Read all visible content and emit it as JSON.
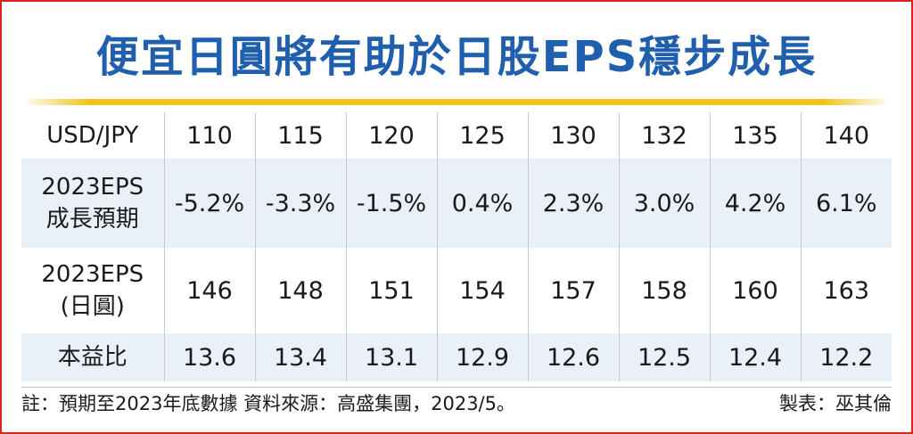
{
  "title": "便宜日圓將有助於日股EPS穩步成長",
  "table": {
    "row_labels": {
      "usd_jpy": "USD/JPY",
      "eps_growth_line1": "2023EPS",
      "eps_growth_line2": "成長預期",
      "eps_jpy_line1": "2023EPS",
      "eps_jpy_line2": "(日圓)",
      "pe": "本益比"
    },
    "usd_jpy": [
      "110",
      "115",
      "120",
      "125",
      "130",
      "132",
      "135",
      "140"
    ],
    "eps_growth": [
      "-5.2%",
      "-3.3%",
      "-1.5%",
      "0.4%",
      "2.3%",
      "3.0%",
      "4.2%",
      "6.1%"
    ],
    "eps_jpy": [
      "146",
      "148",
      "151",
      "154",
      "157",
      "158",
      "160",
      "163"
    ],
    "pe": [
      "13.6",
      "13.4",
      "13.1",
      "12.9",
      "12.6",
      "12.5",
      "12.4",
      "12.2"
    ]
  },
  "footer": {
    "note": "註：預期至2023年底數據  資料來源：高盛集團，2023/5。",
    "credit": "製表：巫其倫"
  },
  "colors": {
    "title": "#1f5fae",
    "border": "#e0201b",
    "rule": "#f3c21a",
    "shade": "#eaf0f8"
  }
}
